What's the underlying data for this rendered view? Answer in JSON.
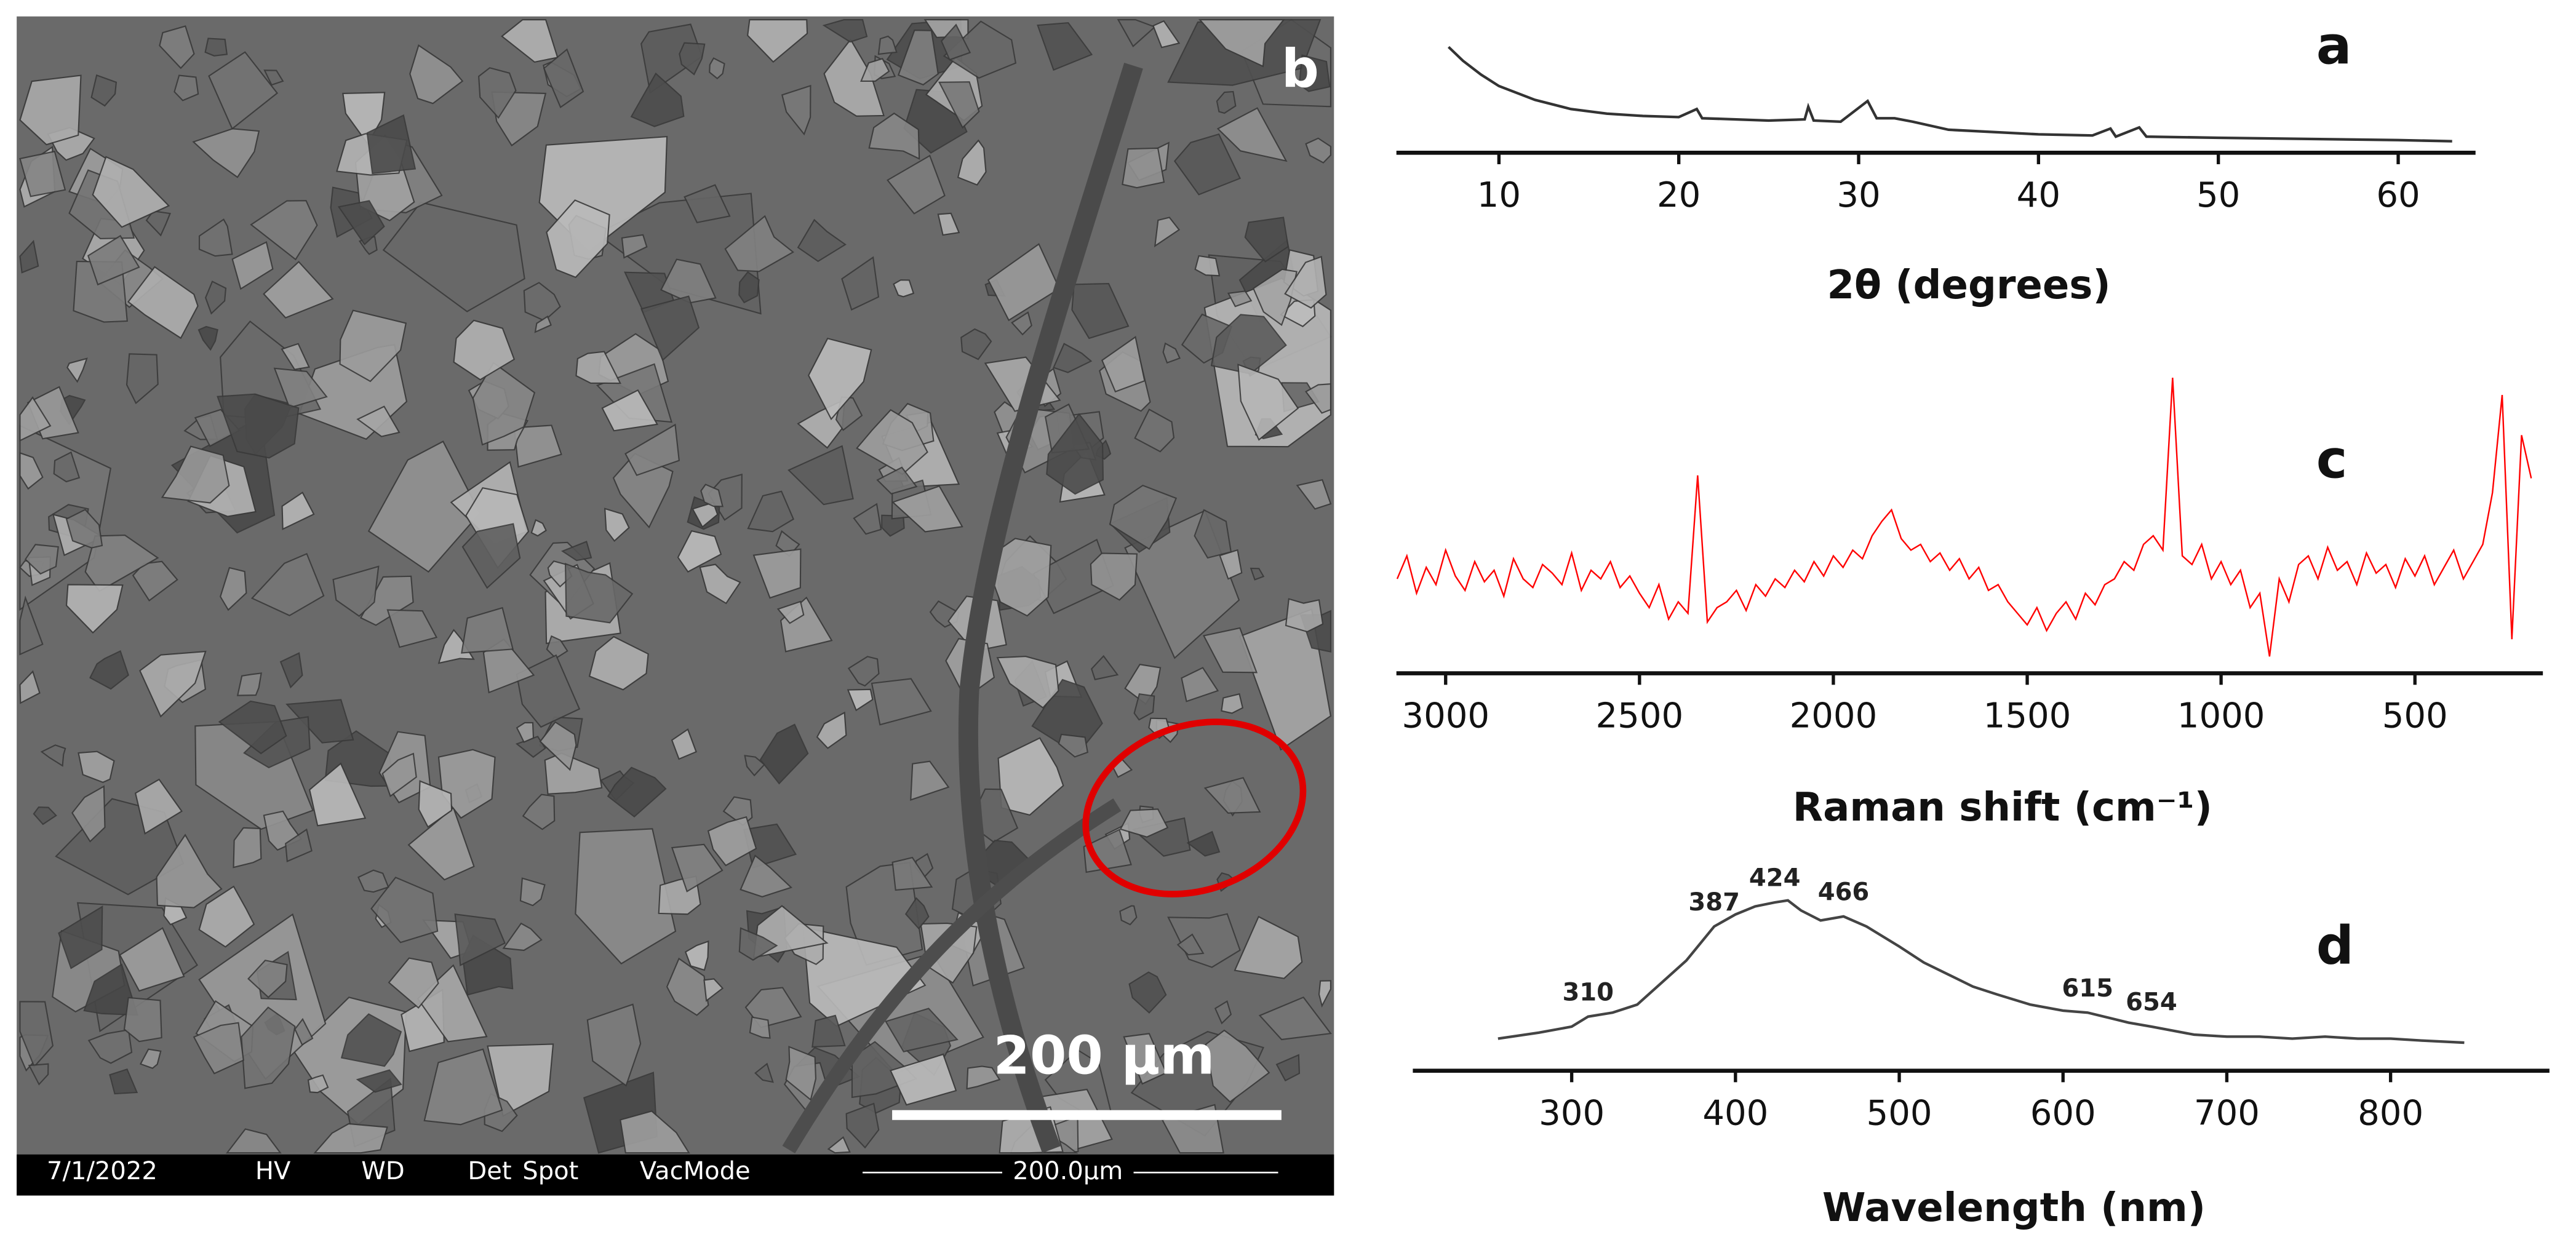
{
  "image": {
    "panel_label": "b",
    "scale_text": "200 µm",
    "info_bar": [
      "7/1/2022",
      "HV",
      "WD",
      "Det",
      "Spot",
      "VacMode",
      "200.0µm"
    ]
  },
  "chart_data": [
    {
      "type": "line",
      "panel_label": "a",
      "xlabel": "2θ (degrees)",
      "xlim": [
        4.3,
        64.3
      ],
      "xticks": [
        10,
        20,
        30,
        40,
        50,
        60
      ],
      "ylim": [
        0,
        100
      ],
      "series": [
        {
          "color": "#333333",
          "x": [
            7.2,
            8,
            9,
            10,
            12,
            14,
            16,
            18,
            20,
            21,
            21.3,
            25,
            27,
            27.2,
            27.5,
            29,
            30.5,
            31,
            32,
            33,
            35,
            40,
            43,
            44,
            44.3,
            45.6,
            46,
            50,
            55,
            60,
            63
          ],
          "values": [
            92,
            80,
            68,
            58,
            46,
            38,
            34,
            32,
            31,
            38,
            30,
            28,
            29,
            40,
            28,
            27,
            45,
            30,
            30,
            27,
            20,
            16,
            15,
            21,
            14,
            22,
            14,
            13,
            12,
            11,
            10
          ]
        }
      ]
    },
    {
      "type": "line",
      "panel_label": "c",
      "xlabel": "Raman shift (cm⁻¹)",
      "xlim": [
        3127,
        170
      ],
      "xticks": [
        3000,
        2500,
        2000,
        1500,
        1000,
        500
      ],
      "ylim": [
        0,
        100
      ],
      "series": [
        {
          "color": "#ff0000",
          "x": [
            3125,
            3100,
            3075,
            3050,
            3025,
            3000,
            2975,
            2950,
            2925,
            2900,
            2875,
            2850,
            2825,
            2800,
            2775,
            2750,
            2725,
            2700,
            2675,
            2650,
            2625,
            2600,
            2575,
            2550,
            2525,
            2500,
            2475,
            2450,
            2425,
            2400,
            2375,
            2350,
            2325,
            2300,
            2275,
            2250,
            2225,
            2200,
            2175,
            2150,
            2125,
            2100,
            2075,
            2050,
            2025,
            2000,
            1975,
            1950,
            1925,
            1900,
            1875,
            1850,
            1825,
            1800,
            1775,
            1750,
            1725,
            1700,
            1675,
            1650,
            1625,
            1600,
            1575,
            1550,
            1525,
            1500,
            1475,
            1450,
            1425,
            1400,
            1375,
            1350,
            1325,
            1300,
            1275,
            1250,
            1225,
            1200,
            1175,
            1150,
            1125,
            1100,
            1075,
            1050,
            1025,
            1000,
            975,
            950,
            925,
            900,
            875,
            850,
            825,
            800,
            775,
            750,
            725,
            700,
            675,
            650,
            625,
            600,
            575,
            550,
            525,
            500,
            475,
            450,
            425,
            400,
            375,
            350,
            325,
            300,
            275,
            250,
            225,
            200
          ],
          "values": [
            30,
            38,
            25,
            34,
            28,
            40,
            31,
            26,
            36,
            29,
            33,
            24,
            37,
            30,
            27,
            35,
            32,
            28,
            39,
            26,
            33,
            30,
            36,
            27,
            31,
            25,
            20,
            28,
            16,
            22,
            18,
            66,
            15,
            20,
            22,
            26,
            19,
            28,
            24,
            30,
            27,
            33,
            29,
            36,
            31,
            38,
            34,
            40,
            37,
            45,
            50,
            54,
            44,
            40,
            42,
            36,
            39,
            33,
            37,
            30,
            34,
            26,
            28,
            22,
            18,
            14,
            20,
            12,
            18,
            22,
            16,
            25,
            21,
            28,
            30,
            36,
            33,
            42,
            45,
            40,
            100,
            38,
            35,
            42,
            30,
            36,
            28,
            33,
            20,
            25,
            3,
            30,
            22,
            35,
            38,
            30,
            41,
            33,
            36,
            28,
            39,
            32,
            35,
            27,
            37,
            31,
            38,
            28,
            34,
            40,
            30,
            36,
            42,
            60,
            94,
            9,
            80,
            65
          ]
        }
      ]
    },
    {
      "type": "line",
      "panel_label": "d",
      "xlabel": "Wavelength (nm)",
      "xlim": [
        203,
        897
      ],
      "xticks": [
        300,
        400,
        500,
        600,
        700,
        800
      ],
      "ylim": [
        0,
        100
      ],
      "peaks": [
        310,
        387,
        424,
        466,
        615,
        654
      ],
      "series": [
        {
          "color": "#444444",
          "x": [
            255,
            280,
            300,
            310,
            325,
            340,
            355,
            370,
            387,
            400,
            412,
            424,
            432,
            440,
            452,
            466,
            480,
            500,
            515,
            530,
            545,
            560,
            580,
            600,
            615,
            630,
            640,
            654,
            680,
            700,
            720,
            740,
            760,
            780,
            800,
            820,
            845
          ],
          "values": [
            16,
            19,
            22,
            27,
            29,
            33,
            44,
            55,
            72,
            78,
            82,
            84,
            85,
            80,
            75,
            77,
            72,
            62,
            54,
            48,
            42,
            38,
            33,
            30,
            29,
            26,
            24,
            22,
            18,
            17,
            17,
            16,
            17,
            16,
            16,
            15,
            14
          ]
        }
      ]
    }
  ]
}
